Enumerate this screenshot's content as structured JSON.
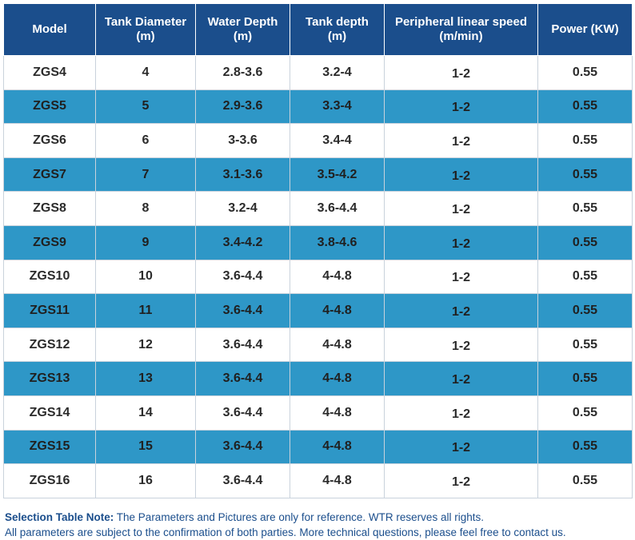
{
  "table": {
    "headers": [
      [
        "Model"
      ],
      [
        "Tank Diameter",
        "(m)"
      ],
      [
        "Water Depth",
        "(m)"
      ],
      [
        "Tank depth",
        "(m)"
      ],
      [
        "Peripheral linear speed",
        "(m/min)"
      ],
      [
        "Power (KW)"
      ]
    ],
    "rows": [
      [
        "ZGS4",
        "4",
        "2.8-3.6",
        "3.2-4",
        "1-2",
        "0.55"
      ],
      [
        "ZGS5",
        "5",
        "2.9-3.6",
        "3.3-4",
        "1-2",
        "0.55"
      ],
      [
        "ZGS6",
        "6",
        "3-3.6",
        "3.4-4",
        "1-2",
        "0.55"
      ],
      [
        "ZGS7",
        "7",
        "3.1-3.6",
        "3.5-4.2",
        "1-2",
        "0.55"
      ],
      [
        "ZGS8",
        "8",
        "3.2-4",
        "3.6-4.4",
        "1-2",
        "0.55"
      ],
      [
        "ZGS9",
        "9",
        "3.4-4.2",
        "3.8-4.6",
        "1-2",
        "0.55"
      ],
      [
        "ZGS10",
        "10",
        "3.6-4.4",
        "4-4.8",
        "1-2",
        "0.55"
      ],
      [
        "ZGS11",
        "11",
        "3.6-4.4",
        "4-4.8",
        "1-2",
        "0.55"
      ],
      [
        "ZGS12",
        "12",
        "3.6-4.4",
        "4-4.8",
        "1-2",
        "0.55"
      ],
      [
        "ZGS13",
        "13",
        "3.6-4.4",
        "4-4.8",
        "1-2",
        "0.55"
      ],
      [
        "ZGS14",
        "14",
        "3.6-4.4",
        "4-4.8",
        "1-2",
        "0.55"
      ],
      [
        "ZGS15",
        "15",
        "3.6-4.4",
        "4-4.8",
        "1-2",
        "0.55"
      ],
      [
        "ZGS16",
        "16",
        "3.6-4.4",
        "4-4.8",
        "1-2",
        "0.55"
      ]
    ]
  },
  "note": {
    "label": "Selection Table Note:",
    "line1": " The Parameters and Pictures are only for reference. WTR  reserves all rights.",
    "line2": "All parameters are subject to the confirmation of both parties. More technical questions, please feel free to contact us."
  },
  "colors": {
    "header_bg": "#1b4e8c",
    "alt_row_bg": "#2e97c7",
    "note_text": "#1b4e8c"
  }
}
